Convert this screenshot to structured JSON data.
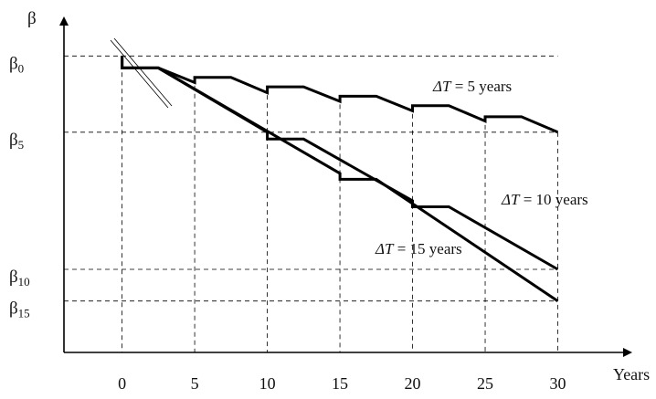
{
  "chart_data": {
    "type": "line",
    "y_axis_symbol": "β",
    "x_axis_label": "Years",
    "x_ticks": [
      "0",
      "5",
      "10",
      "15",
      "20",
      "25",
      "30"
    ],
    "y_ticks": [
      {
        "base": "β",
        "sub": "0"
      },
      {
        "base": "β",
        "sub": "5"
      },
      {
        "base": "β",
        "sub": "10"
      },
      {
        "base": "β",
        "sub": "15"
      }
    ],
    "annotations": [
      {
        "var": "ΔT",
        "text": " = 5 years"
      },
      {
        "var": "ΔT",
        "text": " = 10 years"
      },
      {
        "var": "ΔT",
        "text": " = 15 years"
      }
    ],
    "series": [
      {
        "values": [
          [
            0,
            88
          ],
          [
            0,
            81
          ],
          [
            2.5,
            81
          ],
          [
            5,
            72.5
          ],
          [
            5,
            75.5
          ],
          [
            7.5,
            75.5
          ],
          [
            10,
            66.5
          ],
          [
            10,
            70
          ],
          [
            12.5,
            70
          ],
          [
            15,
            61.5
          ],
          [
            15,
            64.5
          ],
          [
            17.5,
            64.5
          ],
          [
            20,
            56
          ],
          [
            20,
            59
          ],
          [
            22.5,
            59
          ],
          [
            25,
            50
          ],
          [
            25,
            52.5
          ],
          [
            27.5,
            52.5
          ],
          [
            30,
            43.5
          ]
        ]
      },
      {
        "values": [
          [
            0,
            88
          ],
          [
            0,
            81
          ],
          [
            2.5,
            81
          ],
          [
            10,
            43.5
          ],
          [
            10,
            39.5
          ],
          [
            12.5,
            39.5
          ],
          [
            20,
            3.5
          ],
          [
            20,
            0
          ],
          [
            22.5,
            0
          ],
          [
            30,
            -36.5
          ]
        ]
      },
      {
        "values": [
          [
            0,
            88
          ],
          [
            0,
            81
          ],
          [
            2.5,
            81
          ],
          [
            15,
            19.5
          ],
          [
            15,
            16
          ],
          [
            17.5,
            16
          ],
          [
            30,
            -55
          ]
        ]
      }
    ],
    "y_tick_values": [
      88,
      43.5,
      -36.5,
      -55
    ],
    "xlim": [
      -4,
      35
    ],
    "ylim": [
      -85,
      110
    ]
  }
}
